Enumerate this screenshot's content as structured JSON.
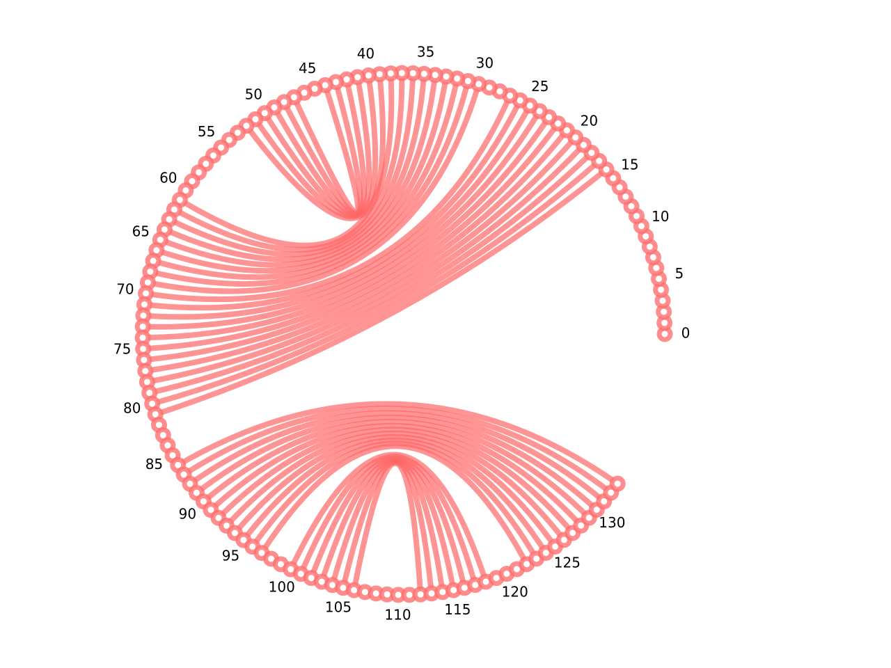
{
  "chart_data": {
    "type": "chord-arc",
    "title": "",
    "node_count": 134,
    "node_start_index": 0,
    "node_end_index": 133,
    "arc_span_degrees": 325,
    "tick_step": 5,
    "tick_labels": [
      "0",
      "5",
      "10",
      "15",
      "20",
      "25",
      "30",
      "35",
      "40",
      "45",
      "50",
      "55",
      "60",
      "65",
      "70",
      "75",
      "80",
      "85",
      "90",
      "95",
      "100",
      "105",
      "110",
      "115",
      "120",
      "125",
      "130"
    ],
    "links": [
      [
        16,
        81
      ],
      [
        17,
        80
      ],
      [
        18,
        79
      ],
      [
        19,
        78
      ],
      [
        20,
        77
      ],
      [
        21,
        76
      ],
      [
        22,
        75
      ],
      [
        23,
        74
      ],
      [
        24,
        73
      ],
      [
        25,
        72
      ],
      [
        26,
        71
      ],
      [
        27,
        70
      ],
      [
        30,
        69
      ],
      [
        31,
        68
      ],
      [
        32,
        67
      ],
      [
        33,
        66
      ],
      [
        34,
        65
      ],
      [
        35,
        64
      ],
      [
        36,
        63
      ],
      [
        37,
        62
      ],
      [
        38,
        61
      ],
      [
        39,
        52
      ],
      [
        40,
        51
      ],
      [
        41,
        50
      ],
      [
        42,
        49
      ],
      [
        43,
        48
      ],
      [
        44,
        47
      ],
      [
        133,
        86
      ],
      [
        132,
        87
      ],
      [
        131,
        88
      ],
      [
        130,
        89
      ],
      [
        129,
        90
      ],
      [
        128,
        91
      ],
      [
        127,
        92
      ],
      [
        126,
        93
      ],
      [
        125,
        94
      ],
      [
        124,
        95
      ],
      [
        123,
        96
      ],
      [
        122,
        97
      ],
      [
        118,
        100
      ],
      [
        117,
        101
      ],
      [
        116,
        102
      ],
      [
        115,
        103
      ],
      [
        114,
        104
      ],
      [
        113,
        105
      ],
      [
        112,
        106
      ]
    ],
    "colors": {
      "node": "#ff7070",
      "link": "#ff6666"
    },
    "grid": false,
    "axes_visible": false,
    "legend": "none"
  }
}
